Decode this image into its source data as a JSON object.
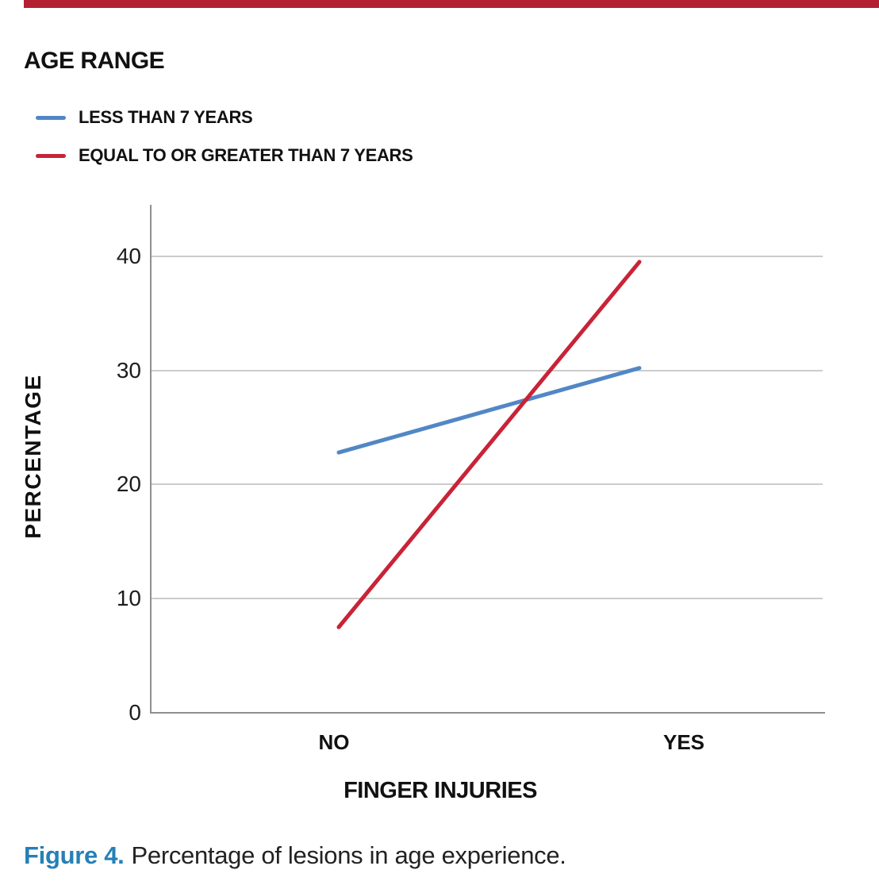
{
  "top_bar_color": "#b22032",
  "legend": {
    "title": "AGE RANGE",
    "items": [
      {
        "label": "LESS THAN 7 YEARS",
        "color": "#5287c5"
      },
      {
        "label": "EQUAL TO OR GREATER THAN 7 YEARS",
        "color": "#c92337"
      }
    ]
  },
  "chart_data": {
    "type": "line",
    "categories": [
      "NO",
      "YES"
    ],
    "series": [
      {
        "name": "LESS THAN 7 YEARS",
        "color": "#5287c5",
        "values": [
          22.8,
          30.2
        ]
      },
      {
        "name": "EQUAL TO OR GREATER THAN 7 YEARS",
        "color": "#c92337",
        "values": [
          7.5,
          39.5
        ]
      }
    ],
    "title": "",
    "xlabel": "FINGER INJURIES",
    "ylabel": "PERCENTAGE",
    "yticks": [
      0,
      10,
      20,
      30,
      40
    ],
    "ylim": [
      0,
      44.5
    ],
    "grid": true,
    "legend_position": "top-left",
    "grid_color": "#cccccc",
    "axis_color": "#8f8f8f"
  },
  "caption": {
    "label": "Figure 4.",
    "label_color": "#2580b6",
    "text": "Percentage of lesions in age experience."
  }
}
